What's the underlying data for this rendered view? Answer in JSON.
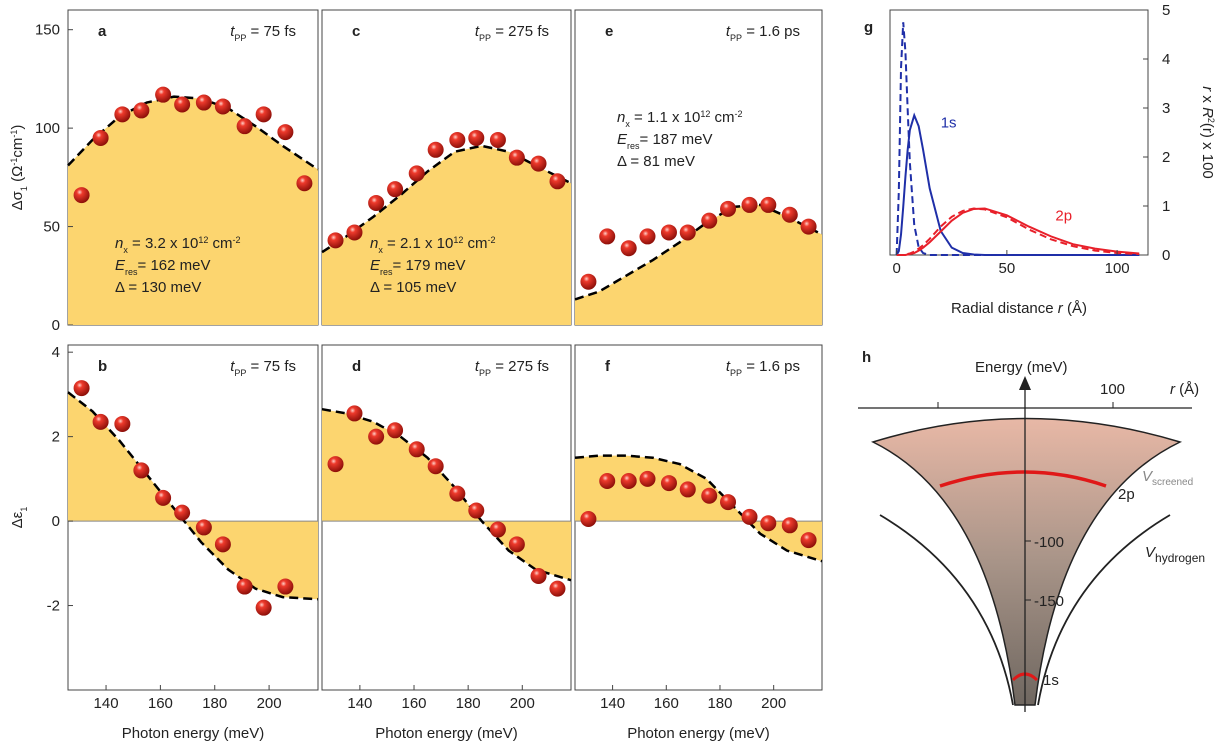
{
  "chart_data": [
    {
      "type": "scatter",
      "label": "a",
      "annotation": [
        "t",
        "PP",
        " = 75 fs"
      ],
      "params": [
        [
          "n",
          "x",
          " = 3.2 x 10",
          "12",
          " cm",
          "-2"
        ],
        [
          "E",
          "res",
          "= 162 meV"
        ],
        [
          "Δ  = 130 meV"
        ]
      ],
      "ylabel": [
        "Δσ",
        "1",
        " (Ω",
        "-1",
        "cm",
        "-1",
        ")"
      ],
      "x": [
        131,
        138,
        146,
        153,
        161,
        168,
        176,
        183,
        191,
        198,
        206,
        213
      ],
      "values": [
        66,
        95,
        107,
        109,
        117,
        112,
        113,
        111,
        101,
        107,
        98,
        72
      ],
      "fit": {
        "x": [
          126,
          135,
          145,
          155,
          165,
          175,
          185,
          195,
          205,
          218
        ],
        "values": [
          81,
          94,
          106,
          113,
          116,
          115,
          110,
          101,
          91,
          79
        ]
      },
      "xlim": [
        126,
        218
      ],
      "ylim": [
        0,
        160
      ],
      "yticks": [
        0,
        50,
        100,
        150
      ],
      "color": "#d42a20",
      "fill_color": "#fcd56f",
      "fit_color": "#000000"
    },
    {
      "type": "scatter",
      "label": "b",
      "annotation": [
        "t",
        "PP",
        " = 75 fs"
      ],
      "ylabel": [
        "Δε",
        "1"
      ],
      "xlabel": "Photon energy (meV)",
      "x": [
        131,
        138,
        146,
        153,
        161,
        168,
        176,
        183,
        191,
        198,
        206
      ],
      "values": [
        3.15,
        2.35,
        2.3,
        1.2,
        0.55,
        0.2,
        -0.15,
        -0.55,
        -1.55,
        -2.05,
        -1.55
      ],
      "fit": {
        "x": [
          126,
          135,
          145,
          155,
          165,
          175,
          185,
          195,
          205,
          218
        ],
        "values": [
          3.05,
          2.6,
          1.9,
          1.1,
          0.3,
          -0.5,
          -1.15,
          -1.6,
          -1.8,
          -1.85
        ]
      },
      "xlim": [
        126,
        218
      ],
      "ylim": [
        -4,
        4.17
      ],
      "yticks": [
        -2,
        0,
        2,
        4
      ],
      "xticks": [
        140,
        160,
        180,
        200
      ],
      "color": "#d42a20",
      "fill_color": "#fcd56f",
      "fit_color": "#000000"
    },
    {
      "type": "scatter",
      "label": "c",
      "annotation": [
        "t",
        "PP",
        " = 275 fs"
      ],
      "params": [
        [
          "n",
          "x",
          " = 2.1 x 10",
          "12",
          " cm",
          "-2"
        ],
        [
          "E",
          "res",
          "= 179 meV"
        ],
        [
          "Δ  = 105 meV"
        ]
      ],
      "x": [
        131,
        138,
        146,
        153,
        161,
        168,
        176,
        183,
        191,
        198,
        206,
        213
      ],
      "values": [
        43,
        47,
        62,
        69,
        77,
        89,
        94,
        95,
        94,
        85,
        82,
        73
      ],
      "fit": {
        "x": [
          126,
          135,
          145,
          155,
          165,
          175,
          185,
          195,
          205,
          218
        ],
        "values": [
          37,
          45,
          55,
          66,
          78,
          88,
          91,
          88,
          81,
          72
        ]
      },
      "xlim": [
        126,
        218
      ],
      "ylim": [
        0,
        160
      ],
      "color": "#d42a20",
      "fill_color": "#fcd56f",
      "fit_color": "#000000"
    },
    {
      "type": "scatter",
      "label": "d",
      "annotation": [
        "t",
        "PP",
        " = 275 fs"
      ],
      "xlabel": "Photon energy (meV)",
      "x": [
        131,
        138,
        146,
        153,
        161,
        168,
        176,
        183,
        191,
        198,
        206,
        213
      ],
      "values": [
        1.35,
        2.55,
        2.0,
        2.15,
        1.7,
        1.3,
        0.65,
        0.25,
        -0.2,
        -0.55,
        -1.3,
        -1.6
      ],
      "fit": {
        "x": [
          126,
          135,
          145,
          155,
          165,
          175,
          185,
          195,
          205,
          218
        ],
        "values": [
          2.65,
          2.55,
          2.35,
          2.0,
          1.5,
          0.8,
          0.0,
          -0.7,
          -1.15,
          -1.4
        ]
      },
      "xlim": [
        126,
        218
      ],
      "ylim": [
        -4,
        4.17
      ],
      "xticks": [
        140,
        160,
        180,
        200
      ],
      "color": "#d42a20",
      "fill_color": "#fcd56f",
      "fit_color": "#000000"
    },
    {
      "type": "scatter",
      "label": "e",
      "annotation": [
        "t",
        "PP",
        " = 1.6 ps"
      ],
      "params": [
        [
          "n",
          "x",
          " = 1.1 x 10",
          "12",
          " cm",
          "-2"
        ],
        [
          "E",
          "res",
          "= 187 meV"
        ],
        [
          "Δ  = 81 meV"
        ]
      ],
      "x": [
        131,
        138,
        146,
        153,
        161,
        168,
        176,
        183,
        191,
        198,
        206,
        213
      ],
      "values": [
        22,
        45,
        39,
        45,
        47,
        47,
        53,
        59,
        61,
        61,
        56,
        50
      ],
      "fit": {
        "x": [
          126,
          135,
          145,
          155,
          165,
          175,
          185,
          195,
          205,
          218
        ],
        "values": [
          13,
          17,
          25,
          33,
          42,
          52,
          60,
          61,
          55,
          46
        ]
      },
      "xlim": [
        126,
        218
      ],
      "ylim": [
        0,
        160
      ],
      "color": "#d42a20",
      "fill_color": "#fcd56f",
      "fit_color": "#000000"
    },
    {
      "type": "scatter",
      "label": "f",
      "annotation": [
        "t",
        "PP",
        " = 1.6 ps"
      ],
      "xlabel": "Photon energy (meV)",
      "x": [
        131,
        138,
        146,
        153,
        161,
        168,
        176,
        183,
        191,
        198,
        206,
        213
      ],
      "values": [
        0.05,
        0.95,
        0.95,
        1.0,
        0.9,
        0.75,
        0.6,
        0.45,
        0.1,
        -0.05,
        -0.1,
        -0.45
      ],
      "fit": {
        "x": [
          126,
          135,
          145,
          155,
          165,
          175,
          185,
          195,
          205,
          218
        ],
        "values": [
          1.5,
          1.55,
          1.55,
          1.5,
          1.35,
          1.0,
          0.35,
          -0.3,
          -0.7,
          -0.95
        ]
      },
      "xlim": [
        126,
        218
      ],
      "ylim": [
        -4,
        4.17
      ],
      "xticks": [
        140,
        160,
        180,
        200
      ],
      "color": "#d42a20",
      "fill_color": "#fcd56f",
      "fit_color": "#000000"
    },
    {
      "type": "line",
      "label": "g",
      "xlabel": [
        "Radial distance ",
        "r",
        " (Å)"
      ],
      "ylabel": [
        "r",
        " x ",
        "R",
        "2",
        "(r)",
        " x 100"
      ],
      "labels": [
        "1s",
        "2p"
      ],
      "x": [
        0,
        1,
        2,
        3,
        4,
        5,
        6,
        8,
        10,
        12,
        15,
        20,
        25,
        30,
        35,
        40,
        50,
        60,
        70,
        80,
        90,
        100,
        110
      ],
      "series": [
        {
          "color": "#1f2fa8",
          "style": "solid",
          "values": [
            0,
            0.08,
            0.42,
            0.98,
            1.6,
            2.14,
            2.55,
            2.85,
            2.63,
            2.15,
            1.36,
            0.49,
            0.15,
            0.04,
            0.01,
            0,
            0,
            0,
            0,
            0,
            0,
            0,
            0
          ]
        },
        {
          "color": "#1f2fa8",
          "style": "dashed",
          "values": [
            0,
            1.3,
            3.82,
            4.75,
            4.14,
            2.98,
            1.89,
            0.61,
            0.16,
            0.04,
            0,
            0,
            0,
            0,
            0,
            0,
            0,
            0,
            0,
            0,
            0,
            0,
            0
          ]
        },
        {
          "color": "#e8202a",
          "style": "solid",
          "values": [
            0,
            0,
            0,
            0,
            0,
            0.01,
            0.02,
            0.04,
            0.09,
            0.15,
            0.26,
            0.48,
            0.7,
            0.86,
            0.94,
            0.95,
            0.81,
            0.58,
            0.38,
            0.22,
            0.13,
            0.07,
            0.03
          ]
        },
        {
          "color": "#e8202a",
          "style": "dashed",
          "values": [
            0,
            0,
            0,
            0,
            0.01,
            0.02,
            0.03,
            0.07,
            0.13,
            0.2,
            0.33,
            0.58,
            0.78,
            0.9,
            0.95,
            0.93,
            0.77,
            0.52,
            0.32,
            0.18,
            0.09,
            0.04,
            0.02
          ]
        }
      ],
      "xlim": [
        -3,
        114
      ],
      "xticks": [
        0,
        50,
        100
      ],
      "ylim": [
        0,
        5
      ],
      "yticks": [
        0,
        1,
        2,
        3,
        4,
        5
      ]
    }
  ],
  "diagram": {
    "label": "h",
    "energy_axis": "Energy (meV)",
    "r_axis": [
      "r",
      " (Å)"
    ],
    "r_tick": 100,
    "energy_ticks": [
      -100,
      -150
    ],
    "v_screened": [
      "V",
      "screened"
    ],
    "v_hydrogen": [
      "V",
      "hydrogen"
    ],
    "state_2p": "2p",
    "state_1s": "1s"
  }
}
